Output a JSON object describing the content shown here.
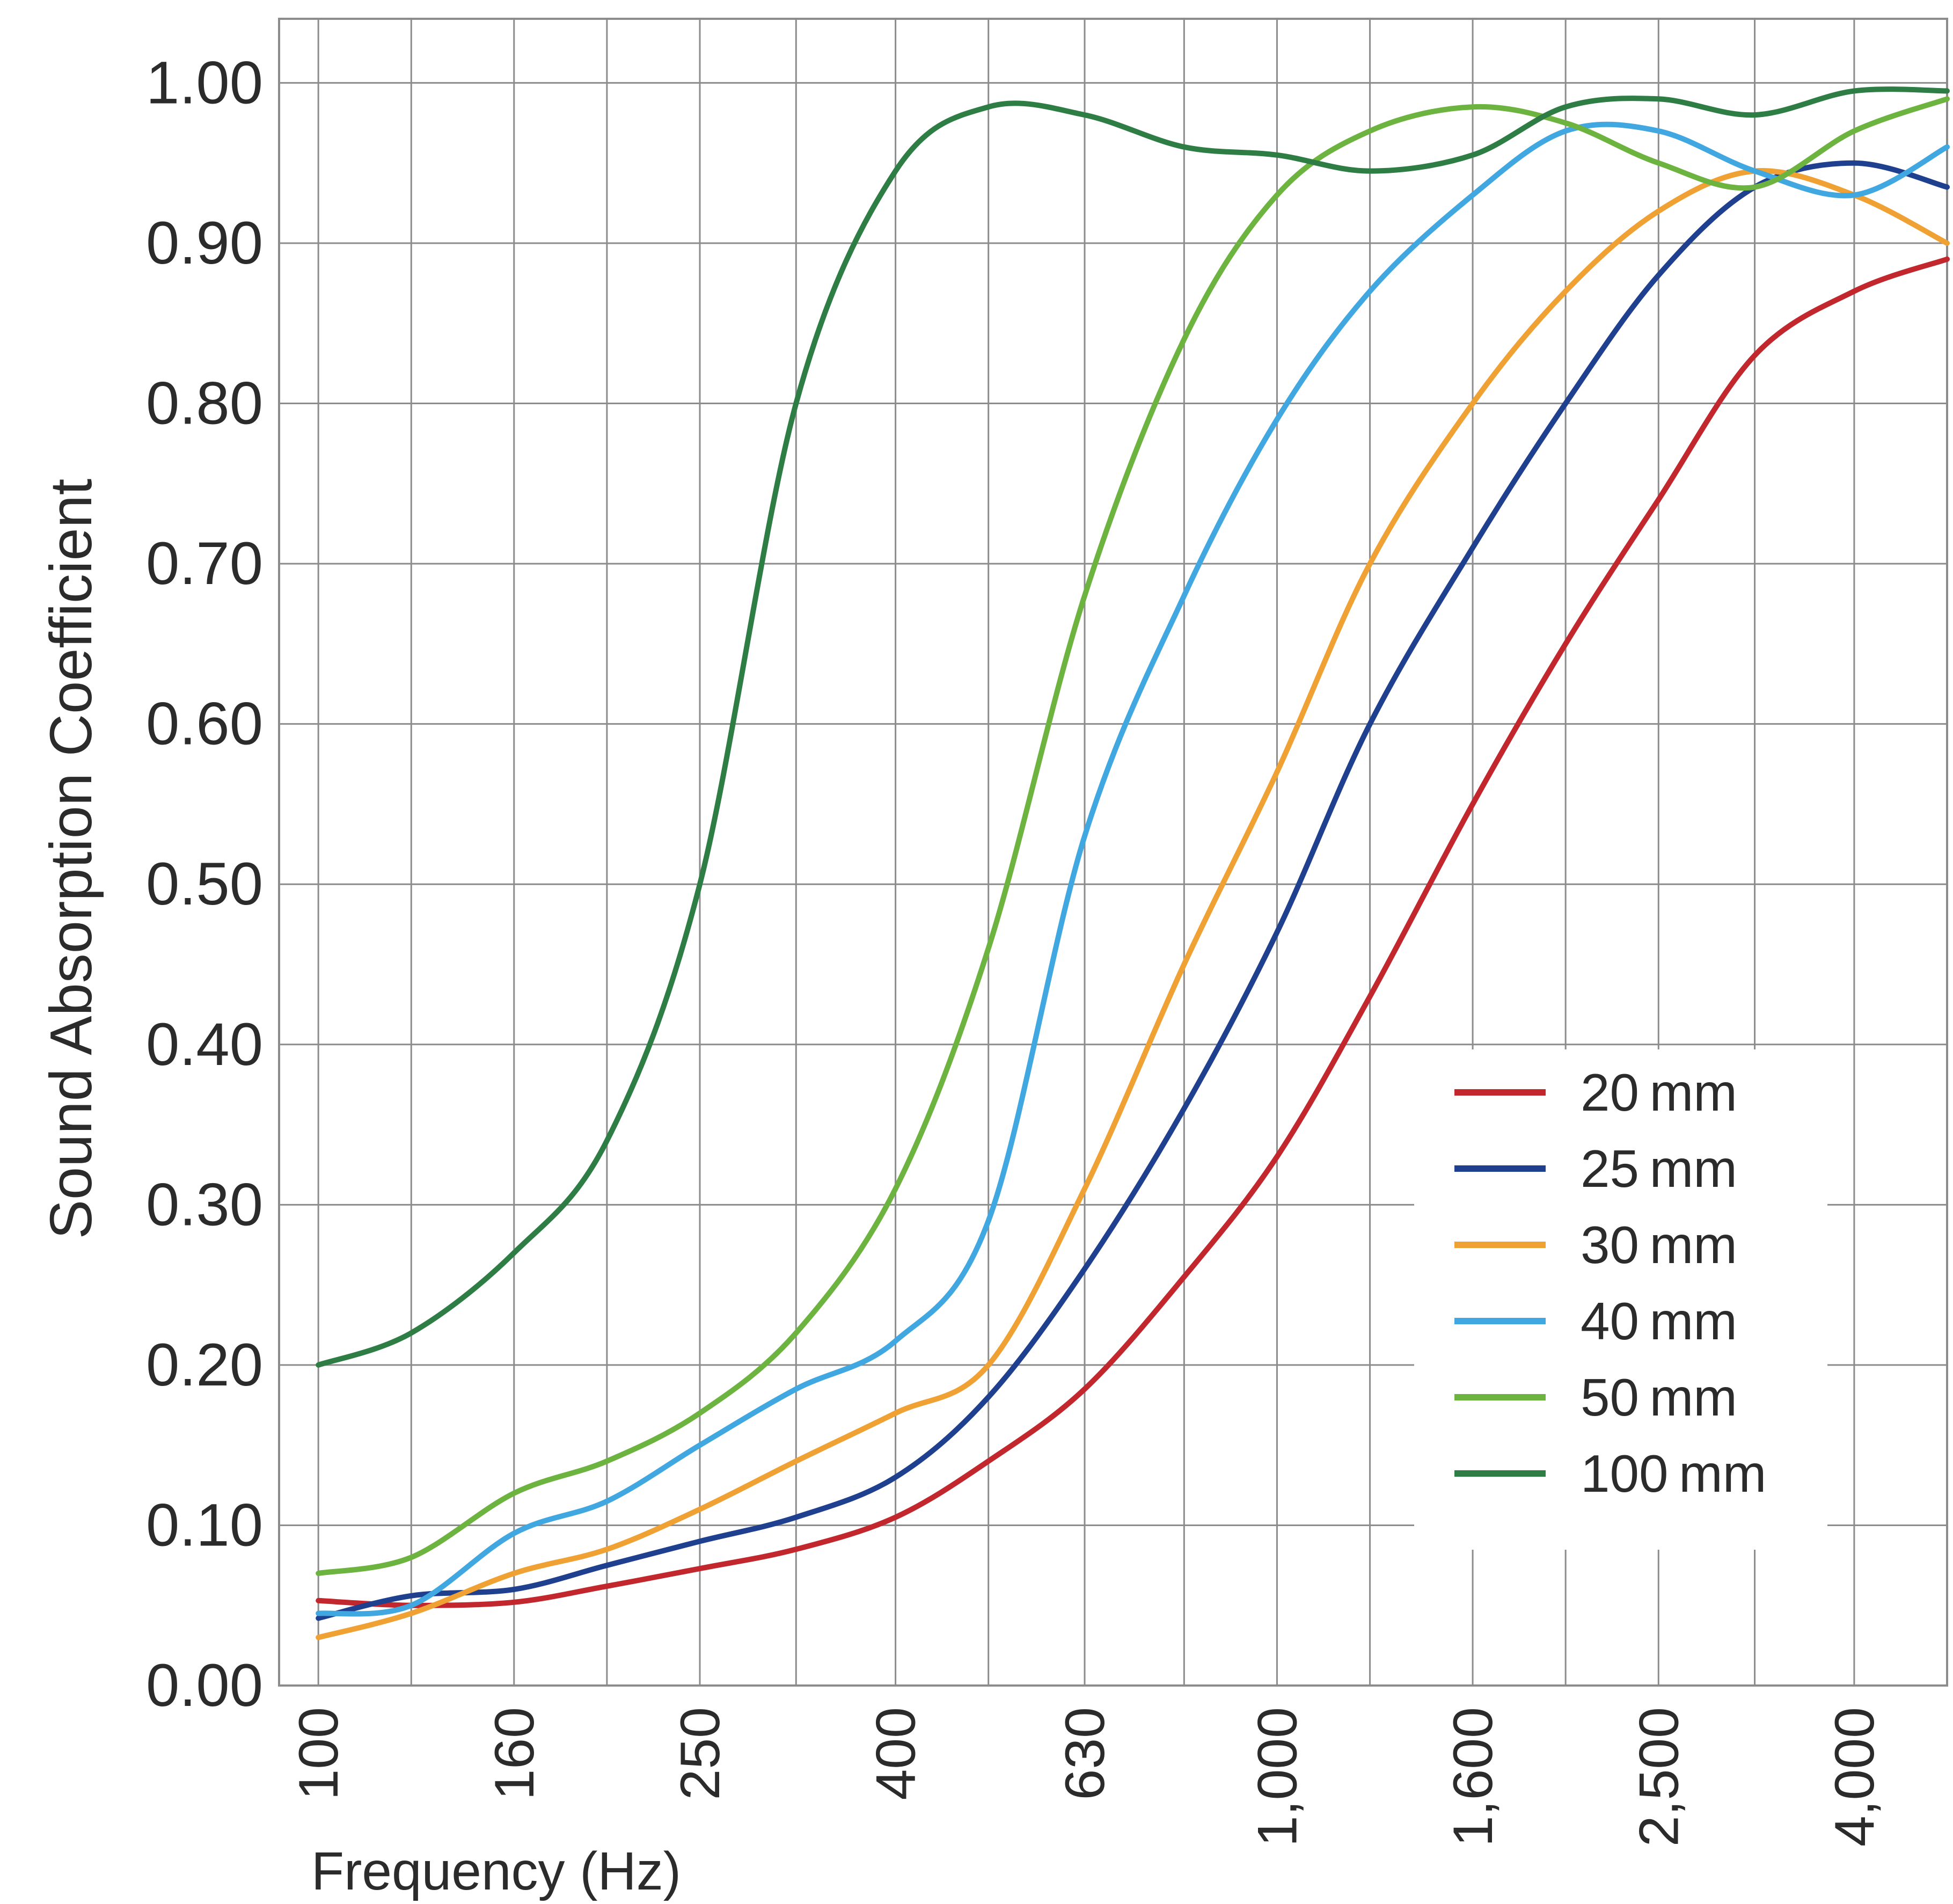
{
  "chart_data": {
    "type": "line",
    "xlabel": "Frequency (Hz)",
    "ylabel": "Sound Absorption Coefficient",
    "x_scale": "log",
    "xlim": [
      91,
      5000
    ],
    "ylim": [
      0,
      1.04
    ],
    "grid": true,
    "legend_position": "bottom-right",
    "x_ticks": [
      100,
      160,
      250,
      400,
      630,
      1000,
      1600,
      2500,
      4000
    ],
    "x_tick_labels": [
      "100",
      "160",
      "250",
      "400",
      "630",
      "1,000",
      "1,600",
      "2,500",
      "4,000"
    ],
    "x_gridlines": [
      100,
      125,
      160,
      200,
      250,
      315,
      400,
      500,
      630,
      800,
      1000,
      1250,
      1600,
      2000,
      2500,
      3150,
      4000
    ],
    "y_ticks": [
      0,
      0.1,
      0.2,
      0.3,
      0.4,
      0.5,
      0.6,
      0.7,
      0.8,
      0.9,
      1.0
    ],
    "y_tick_labels": [
      "0.00",
      "0.10",
      "0.20",
      "0.30",
      "0.40",
      "0.50",
      "0.60",
      "0.70",
      "0.80",
      "0.90",
      "1.00"
    ],
    "x": [
      100,
      125,
      160,
      200,
      250,
      315,
      400,
      500,
      630,
      800,
      1000,
      1250,
      1600,
      2000,
      2500,
      3150,
      4000,
      5000
    ],
    "series": [
      {
        "name": "20 mm",
        "color": "#c1272d",
        "values": [
          0.053,
          0.05,
          0.052,
          0.062,
          0.073,
          0.085,
          0.105,
          0.14,
          0.185,
          0.255,
          0.33,
          0.43,
          0.55,
          0.65,
          0.74,
          0.83,
          0.87,
          0.89
        ]
      },
      {
        "name": "25 mm",
        "color": "#1f3f8f",
        "values": [
          0.042,
          0.056,
          0.06,
          0.075,
          0.09,
          0.105,
          0.13,
          0.18,
          0.26,
          0.36,
          0.47,
          0.6,
          0.71,
          0.8,
          0.88,
          0.935,
          0.95,
          0.935
        ]
      },
      {
        "name": "30 mm",
        "color": "#f0a133",
        "values": [
          0.03,
          0.045,
          0.07,
          0.085,
          0.11,
          0.14,
          0.17,
          0.2,
          0.31,
          0.45,
          0.57,
          0.7,
          0.8,
          0.87,
          0.92,
          0.945,
          0.93,
          0.9
        ]
      },
      {
        "name": "40 mm",
        "color": "#41a7e0",
        "values": [
          0.045,
          0.05,
          0.095,
          0.115,
          0.15,
          0.185,
          0.215,
          0.29,
          0.53,
          0.68,
          0.79,
          0.87,
          0.93,
          0.97,
          0.97,
          0.945,
          0.93,
          0.96
        ]
      },
      {
        "name": "50 mm",
        "color": "#6db33f",
        "values": [
          0.07,
          0.08,
          0.12,
          0.14,
          0.17,
          0.22,
          0.31,
          0.46,
          0.68,
          0.84,
          0.93,
          0.97,
          0.985,
          0.975,
          0.95,
          0.935,
          0.97,
          0.99
        ]
      },
      {
        "name": "100 mm",
        "color": "#2e7d45",
        "values": [
          0.2,
          0.22,
          0.27,
          0.34,
          0.5,
          0.8,
          0.945,
          0.985,
          0.98,
          0.96,
          0.955,
          0.945,
          0.955,
          0.985,
          0.99,
          0.98,
          0.995,
          0.995
        ]
      }
    ]
  }
}
